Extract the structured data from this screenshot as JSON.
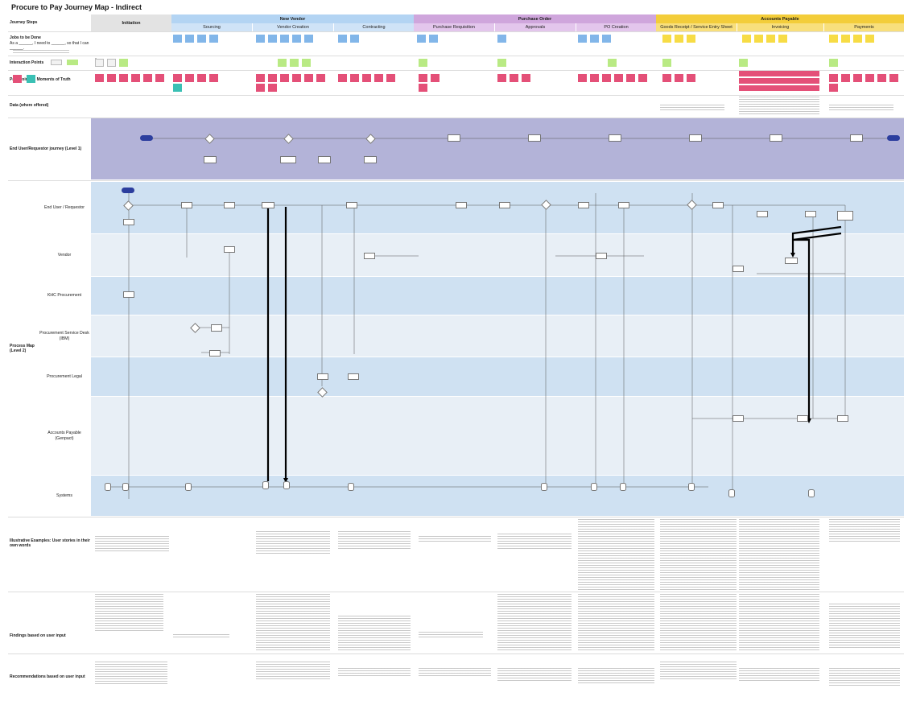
{
  "page": {
    "title": "Procure to Pay Journey Map - Indirect"
  },
  "header": {
    "row_label": "Journey Steps",
    "phases": [
      {
        "name": "Initiation",
        "key": "init"
      },
      {
        "name": "New Vendor",
        "key": "vendor"
      },
      {
        "name": "Purchase Order",
        "key": "po"
      },
      {
        "name": "Accounts Payable",
        "key": "ap"
      }
    ],
    "subphases": [
      "Sourcing",
      "Vendor Creation",
      "Contracting",
      "Purchase Requisition",
      "Approvals",
      "PO Creation",
      "Goods Receipt / Service Entry Sheet",
      "Invoicing",
      "Payments"
    ]
  },
  "rows": {
    "jobs_title": "Jobs to be Done",
    "jobs_template": "As a ______, I need to ______, so that I can ______.",
    "interaction_points": "Interaction Points",
    "pain_points": "Pain Points & Moments of Truth",
    "data_offered": "Data (where offered)",
    "end_user_journey": "End User/Requestor journey (Level 1)",
    "process_map": "Process Map (Level 2)",
    "illustrative": "Illustrative Examples: User stories in their own words",
    "findings": "Findings based on user input",
    "recommendations": "Recommendations based on user input"
  },
  "lanes": [
    "End User / Requestor",
    "Vendor",
    "KHC Procurement",
    "Procurement Service Desk (IBM)",
    "Procurement Legal",
    "Accounts Payable (Genpact)",
    "Systems"
  ],
  "interaction_legend": [
    {
      "label": "",
      "color": "gray"
    },
    {
      "label": "",
      "color": "green"
    }
  ],
  "colors": {
    "initiation": "#e3e3e3",
    "new_vendor": "#b3d4f3",
    "purchase_order": "#cfa6dc",
    "accounts_payable": "#f3cd3a",
    "journey_band": "#b3b3d8",
    "lane_dark": "#cfe1f2",
    "lane_light": "#e8eff6",
    "sticky_blue": "#82b6e9",
    "sticky_yellow": "#f7dc45",
    "sticky_green": "#b9ea84",
    "sticky_pink": "#e45078",
    "sticky_teal": "#3ac0b4",
    "flow_start": "#2c3e9e"
  }
}
